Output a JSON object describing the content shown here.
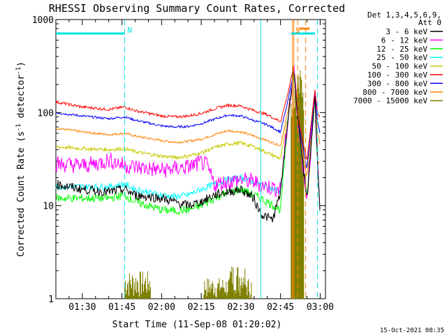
{
  "chart_data": {
    "type": "line",
    "title": "RHESSI Observing Summary Count Rates, Corrected",
    "xlabel": "Start Time (11-Sep-08 01:20:02)",
    "ylabel_main": "Corrected Count Rate (s",
    "ylabel_sup1": "-1",
    "ylabel_mid": " detector",
    "ylabel_sup2": "-1",
    "ylabel_end": ")",
    "y_scale": "log",
    "ylim": [
      1,
      1000
    ],
    "xlim_min": [
      80,
      182
    ],
    "x_tick_labels": [
      "01:30",
      "01:45",
      "02:00",
      "02:15",
      "02:30",
      "02:45",
      "03:00"
    ],
    "x_tick_values": [
      90,
      105,
      120,
      135,
      150,
      165,
      180
    ],
    "y_tick_labels": [
      "1",
      "10",
      "100",
      "1000"
    ],
    "y_tick_values": [
      1,
      10,
      100,
      1000
    ],
    "legend_header": [
      "Det 1,3,4,5,6,9,",
      "Att 0"
    ],
    "legend_placement": "right",
    "footer_timestamp": "15-Oct-2021 08:35",
    "flags": [
      {
        "label": "N",
        "start": 80,
        "end": 106,
        "marker_at": 106,
        "color": "#00e0e0"
      },
      {
        "label": "S",
        "start": 169,
        "end": 178,
        "color": "#00e0e0"
      },
      {
        "label": "",
        "start": 172,
        "end": 176,
        "color": "#ff8000",
        "row": 2
      }
    ],
    "vlines": [
      {
        "x": 106,
        "color": "#00e0e0",
        "style": "dashed"
      },
      {
        "x": 157.5,
        "color": "#00e0e0",
        "style": "solid"
      },
      {
        "x": 169.5,
        "color": "#ff8000",
        "style": "solid"
      },
      {
        "x": 170.0,
        "color": "#ff8000",
        "style": "solid"
      },
      {
        "x": 171.5,
        "color": "#ff8000",
        "style": "dashed"
      },
      {
        "x": 174.5,
        "color": "#ff8000",
        "style": "dashed"
      },
      {
        "x": 179.0,
        "color": "#00e0e0",
        "style": "dashed"
      }
    ],
    "series": [
      {
        "name": "3 - 6 keV",
        "color": "#000000",
        "noise": 0.1,
        "x": [
          80,
          90,
          100,
          106,
          110,
          120,
          130,
          135,
          140,
          145,
          150,
          155,
          156,
          157,
          158,
          162,
          165,
          168,
          170,
          172,
          175,
          178,
          179,
          180
        ],
        "y": [
          17,
          15,
          14,
          15,
          13,
          12,
          10,
          11,
          13,
          14,
          15,
          12,
          10,
          9,
          8,
          7,
          14,
          95,
          300,
          60,
          12,
          150,
          30,
          7
        ]
      },
      {
        "name": "6 - 12 keV",
        "color": "#ff00ff",
        "noise": 0.18,
        "x": [
          80,
          90,
          95,
          100,
          103,
          106,
          110,
          115,
          120,
          125,
          130,
          135,
          137,
          140,
          145,
          150,
          155,
          157,
          160,
          165,
          168,
          170,
          172,
          175,
          178,
          179,
          180
        ],
        "y": [
          28,
          27,
          28,
          31,
          29,
          27,
          26,
          25,
          24,
          25,
          26,
          29,
          27,
          17,
          18,
          19,
          18,
          17,
          16,
          15,
          95,
          300,
          60,
          12,
          150,
          30,
          8
        ]
      },
      {
        "name": "12 - 25 keV",
        "color": "#00ff00",
        "noise": 0.09,
        "x": [
          80,
          90,
          100,
          106,
          110,
          120,
          125,
          130,
          135,
          140,
          145,
          150,
          155,
          160,
          165,
          168,
          170,
          172,
          175,
          178,
          179,
          180
        ],
        "y": [
          12,
          12,
          12,
          13,
          11,
          9,
          8.8,
          9,
          10,
          12,
          14,
          15,
          13,
          11,
          9,
          95,
          300,
          60,
          12,
          150,
          30,
          8
        ]
      },
      {
        "name": "25 - 50 keV",
        "color": "#00ffff",
        "noise": 0.07,
        "x": [
          80,
          90,
          100,
          106,
          110,
          120,
          125,
          130,
          135,
          140,
          145,
          150,
          155,
          160,
          165,
          168,
          170,
          172,
          175,
          178,
          179,
          180
        ],
        "y": [
          16,
          16,
          16,
          17,
          15,
          13,
          12.5,
          13,
          15,
          17,
          19,
          20,
          18,
          16,
          14,
          95,
          300,
          60,
          12,
          150,
          30,
          8
        ]
      },
      {
        "name": "50 - 100 keV",
        "color": "#c8c800",
        "noise": 0.04,
        "x": [
          80,
          90,
          100,
          106,
          110,
          120,
          125,
          130,
          135,
          140,
          145,
          150,
          155,
          160,
          165,
          168,
          170,
          172,
          175,
          178,
          179,
          180
        ],
        "y": [
          43,
          41,
          40,
          41,
          38,
          34,
          33,
          34,
          37,
          42,
          46,
          47,
          43,
          37,
          32,
          95,
          300,
          60,
          12,
          150,
          30,
          30
        ]
      },
      {
        "name": "100 - 300 keV",
        "color": "#ff0000",
        "noise": 0.03,
        "x": [
          80,
          90,
          100,
          106,
          110,
          120,
          125,
          130,
          135,
          140,
          145,
          150,
          155,
          160,
          165,
          168,
          170,
          172,
          175,
          178,
          179,
          180
        ],
        "y": [
          130,
          115,
          108,
          115,
          105,
          92,
          90,
          92,
          98,
          110,
          120,
          118,
          105,
          95,
          80,
          170,
          320,
          80,
          30,
          180,
          100,
          85
        ]
      },
      {
        "name": "300 - 800 keV",
        "color": "#0000ff",
        "noise": 0.025,
        "x": [
          80,
          90,
          100,
          106,
          110,
          120,
          125,
          130,
          135,
          140,
          145,
          150,
          155,
          160,
          165,
          168,
          170,
          172,
          175,
          178,
          179,
          180
        ],
        "y": [
          100,
          92,
          86,
          90,
          83,
          72,
          70,
          71,
          76,
          85,
          94,
          92,
          82,
          74,
          62,
          140,
          290,
          70,
          25,
          160,
          80,
          60
        ]
      },
      {
        "name": "800 - 7000 keV",
        "color": "#ff8000",
        "noise": 0.025,
        "x": [
          80,
          90,
          100,
          106,
          110,
          120,
          125,
          130,
          135,
          140,
          145,
          150,
          155,
          160,
          165,
          168,
          170,
          172,
          175,
          178,
          179,
          180
        ],
        "y": [
          68,
          62,
          58,
          60,
          56,
          50,
          48,
          49,
          52,
          58,
          64,
          62,
          56,
          50,
          44,
          110,
          260,
          60,
          20,
          140,
          60,
          45
        ]
      },
      {
        "name": "7000 - 15000 keV",
        "color": "#808000",
        "noise": 0,
        "x": [
          80,
          180
        ],
        "y": [
          1,
          1
        ]
      }
    ],
    "low_bursts": [
      {
        "x0": 106,
        "x1": 116,
        "ymax": 2.0
      },
      {
        "x0": 136,
        "x1": 154,
        "ymax": 1.7
      },
      {
        "x0": 146,
        "x1": 152,
        "ymax": 2.4
      },
      {
        "x0": 169,
        "x1": 174,
        "ymax": 300
      }
    ]
  }
}
